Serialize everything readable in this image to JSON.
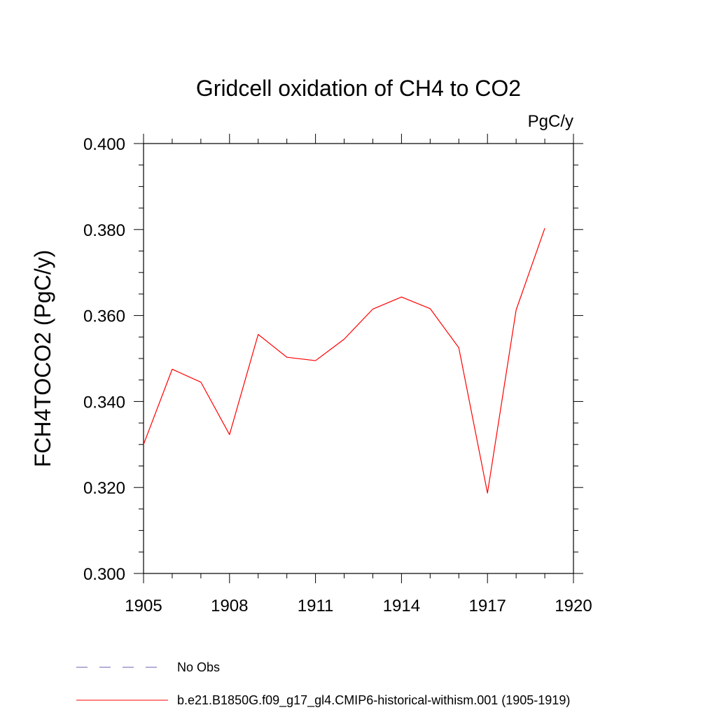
{
  "chart_data": {
    "type": "line",
    "title": "Gridcell oxidation of CH4 to CO2",
    "units": "PgC/y",
    "ylabel": "FCH4TOCO2  (PgC/y)",
    "xlabel": "",
    "xlim": [
      1905,
      1920
    ],
    "ylim": [
      0.3,
      0.4
    ],
    "xticks": [
      "1905",
      "1908",
      "1911",
      "1914",
      "1917",
      "1920"
    ],
    "yticks": [
      "0.300",
      "0.320",
      "0.340",
      "0.360",
      "0.380",
      "0.400"
    ],
    "grid": false,
    "series": [
      {
        "name": "b.e21.B1850G.f09_g17_gl4.CMIP6-historical-withism.001 (1905-1919)",
        "color": "#ff0000",
        "style": "solid",
        "x": [
          1905,
          1906,
          1907,
          1908,
          1909,
          1910,
          1911,
          1912,
          1913,
          1914,
          1915,
          1916,
          1917,
          1918,
          1919
        ],
        "y": [
          0.33,
          0.3475,
          0.3445,
          0.3323,
          0.3556,
          0.3503,
          0.3495,
          0.3545,
          0.3615,
          0.3643,
          0.3616,
          0.3525,
          0.3187,
          0.3613,
          0.3803
        ]
      }
    ],
    "legend": {
      "placement": "bottom-left",
      "entries": [
        {
          "label": "No Obs",
          "color": "#6b5fb0",
          "style": "dashed"
        },
        {
          "label": "b.e21.B1850G.f09_g17_gl4.CMIP6-historical-withism.001 (1905-1919)",
          "color": "#ff0000",
          "style": "solid"
        }
      ]
    }
  }
}
